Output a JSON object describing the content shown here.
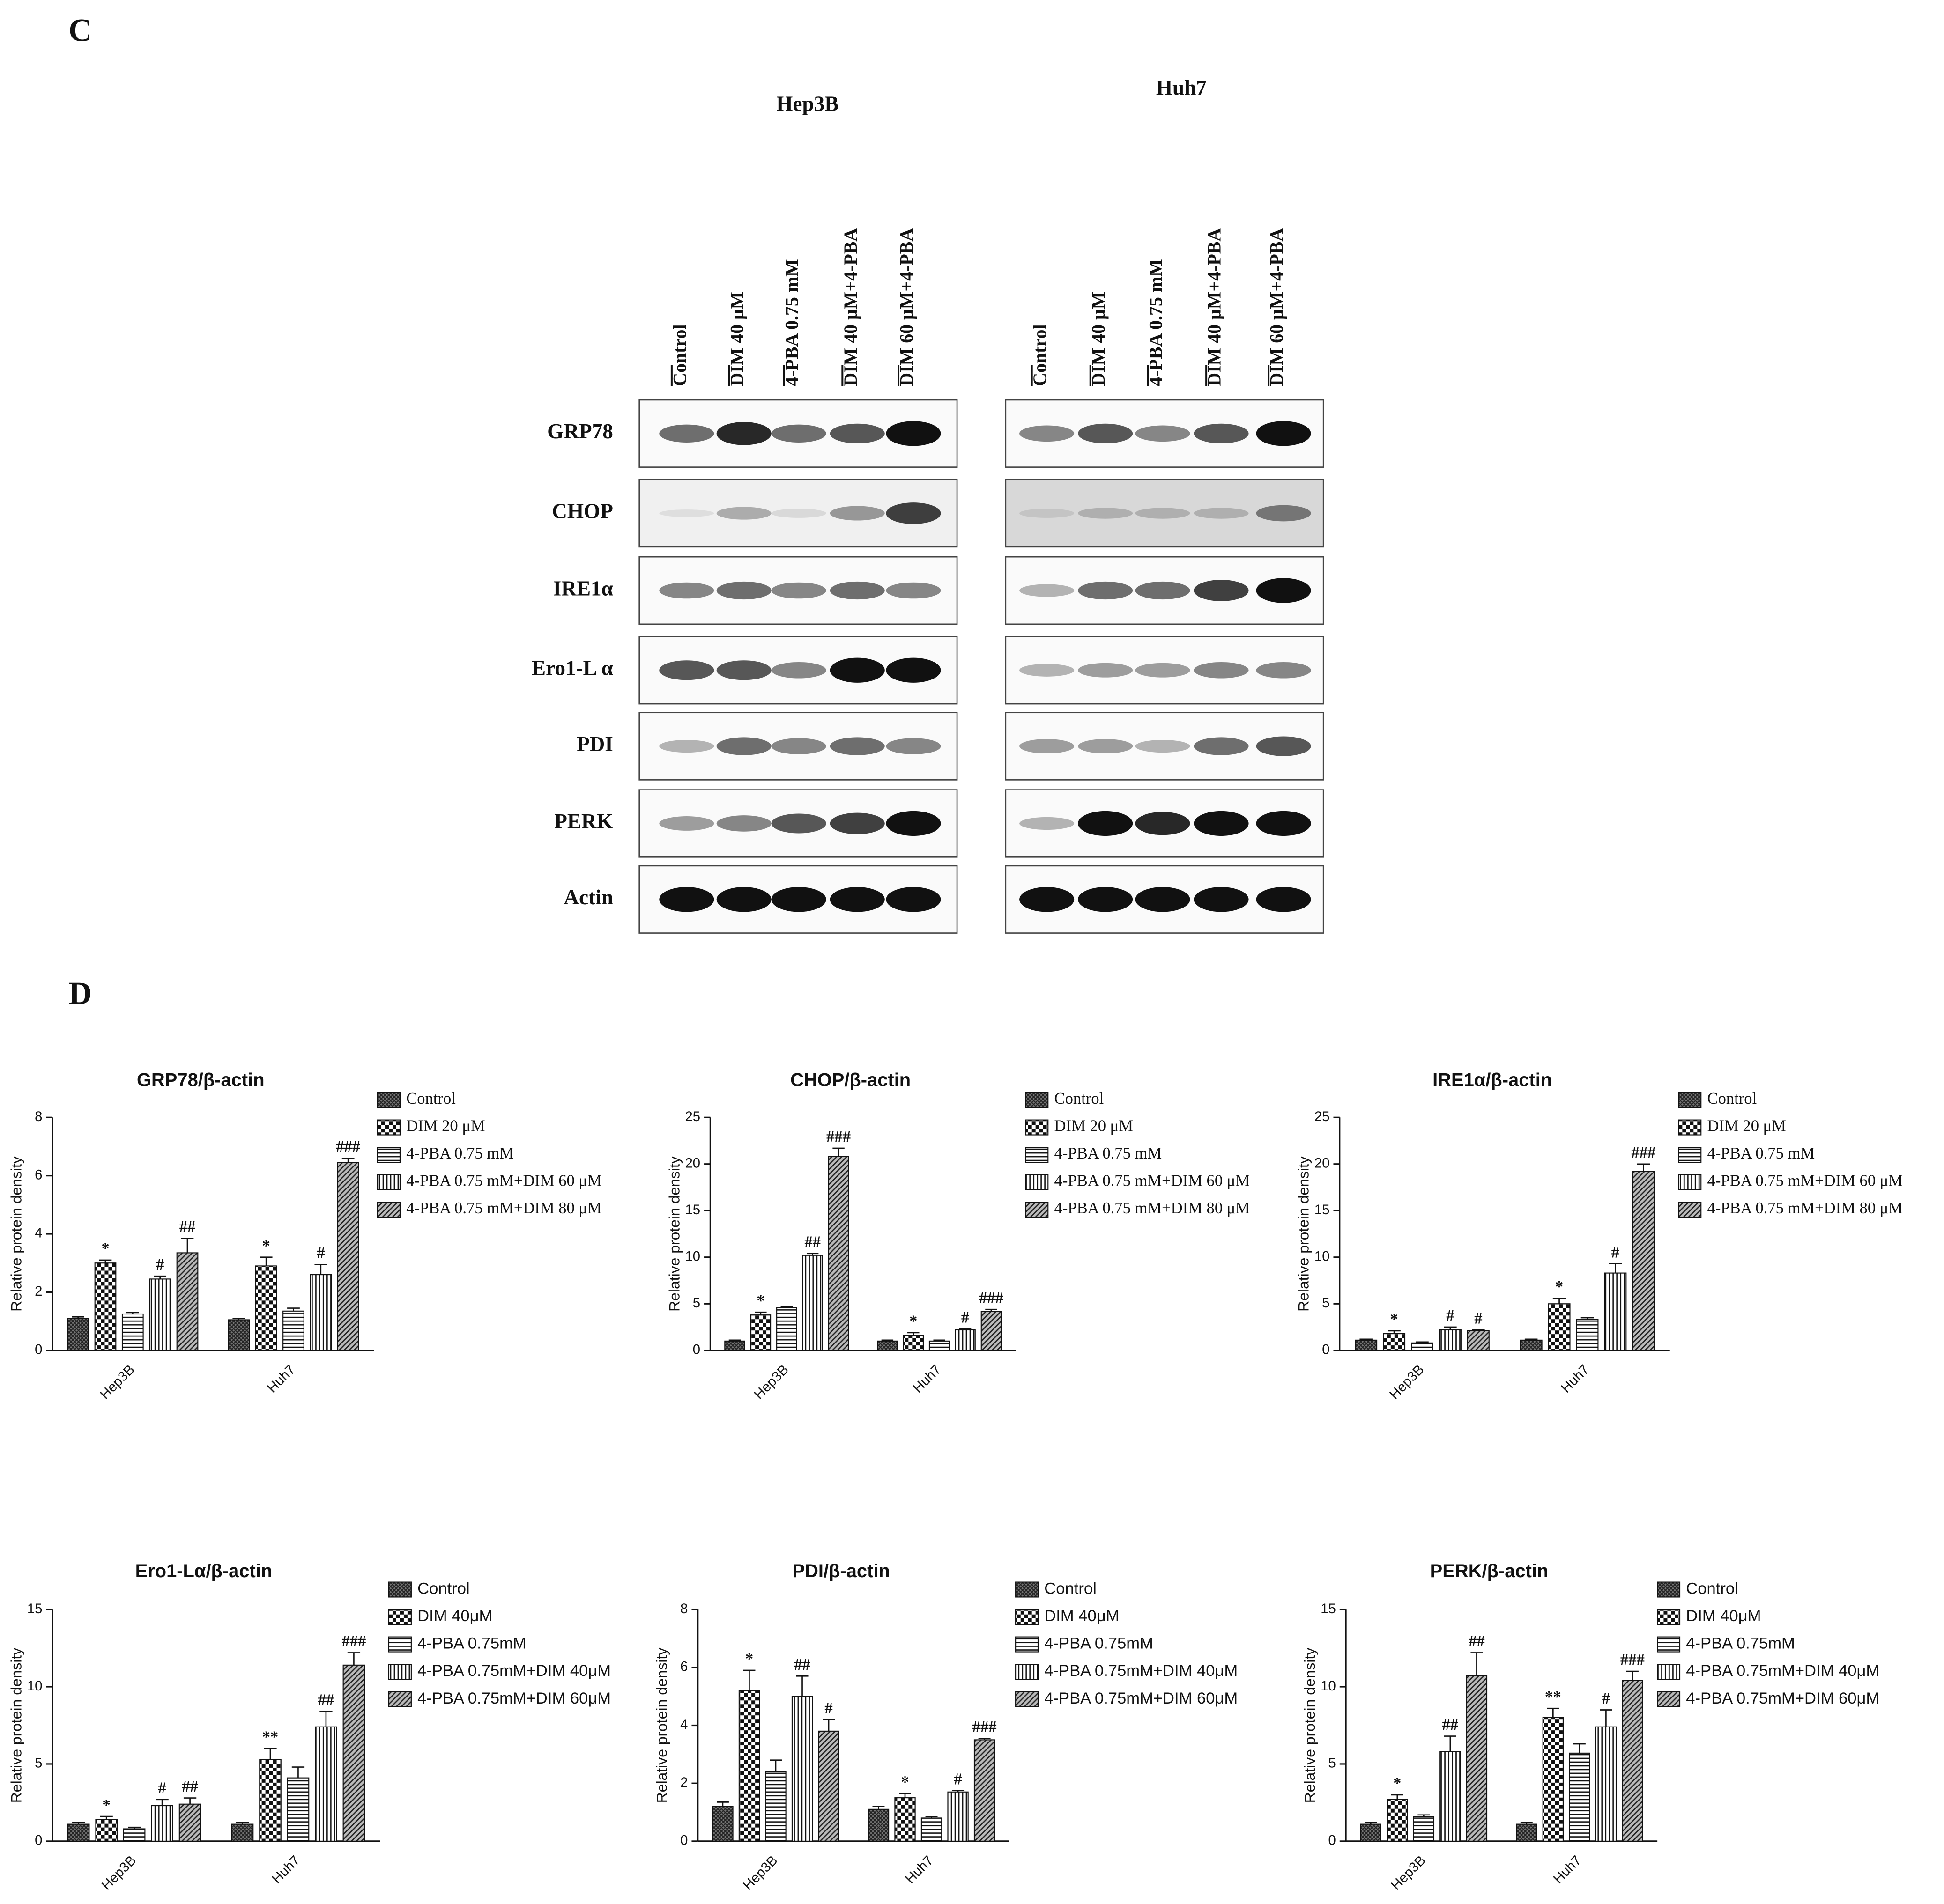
{
  "panel_c": {
    "label": "C",
    "cell_lines": [
      {
        "name": "Hep3B",
        "lanes": [
          "Control",
          "DIM 40 μM",
          "4-PBA 0.75 mM",
          "DIM 40 μM+4-PBA",
          "DIM 60 μM+4-PBA"
        ]
      },
      {
        "name": "Huh7",
        "lanes": [
          "Control",
          "DIM 40 μM",
          "4-PBA 0.75 mM",
          "DIM 40 μM+4-PBA",
          "DIM 60 μM+4-PBA"
        ]
      }
    ],
    "proteins": [
      "GRP78",
      "CHOP",
      "IRE1α",
      "Ero1-L α",
      "PDI",
      "PERK",
      "Actin"
    ]
  },
  "panel_d": {
    "label": "D"
  },
  "chart_data": [
    {
      "type": "bar",
      "title": "GRP78/β-actin",
      "y_label": "Relative protein density",
      "categories": [
        "Hep3B",
        "Huh7"
      ],
      "ylim": [
        0,
        8
      ],
      "yticks": [
        0,
        2,
        4,
        6,
        8
      ],
      "series": [
        {
          "name": "Control",
          "pattern": "dense",
          "values": [
            1.1,
            1.05
          ],
          "errors": [
            0.05,
            0.05
          ],
          "annotations": [
            null,
            null
          ]
        },
        {
          "name": "DIM 20 μM",
          "pattern": "checker",
          "values": [
            3.0,
            2.9
          ],
          "errors": [
            0.1,
            0.3
          ],
          "annotations": [
            "*",
            "*"
          ]
        },
        {
          "name": "4-PBA 0.75 mM",
          "pattern": "horizontal",
          "values": [
            1.25,
            1.35
          ],
          "errors": [
            0.05,
            0.1
          ],
          "annotations": [
            null,
            null
          ]
        },
        {
          "name": "4-PBA 0.75 mM+DIM 60 μM",
          "pattern": "vertical",
          "values": [
            2.45,
            2.6
          ],
          "errors": [
            0.1,
            0.35
          ],
          "annotations": [
            "#",
            "#"
          ]
        },
        {
          "name": "4-PBA 0.75 mM+DIM 80 μM",
          "pattern": "diagonal",
          "values": [
            3.35,
            6.45
          ],
          "errors": [
            0.5,
            0.15
          ],
          "annotations": [
            "##",
            "###"
          ]
        }
      ]
    },
    {
      "type": "bar",
      "title": "CHOP/β-actin",
      "y_label": "Relative protein density",
      "categories": [
        "Hep3B",
        "Huh7"
      ],
      "ylim": [
        0,
        25
      ],
      "yticks": [
        0,
        5,
        10,
        15,
        20,
        25
      ],
      "series": [
        {
          "name": "Control",
          "pattern": "dense",
          "values": [
            1.0,
            1.0
          ],
          "errors": [
            0.1,
            0.1
          ],
          "annotations": [
            null,
            null
          ]
        },
        {
          "name": "DIM 20 μM",
          "pattern": "checker",
          "values": [
            3.8,
            1.6
          ],
          "errors": [
            0.3,
            0.3
          ],
          "annotations": [
            "*",
            "*"
          ]
        },
        {
          "name": "4-PBA 0.75 mM",
          "pattern": "horizontal",
          "values": [
            4.6,
            1.0
          ],
          "errors": [
            0.1,
            0.1
          ],
          "annotations": [
            null,
            null
          ]
        },
        {
          "name": "4-PBA 0.75 mM+DIM 60 μM",
          "pattern": "vertical",
          "values": [
            10.2,
            2.2
          ],
          "errors": [
            0.2,
            0.1
          ],
          "annotations": [
            "##",
            "#"
          ]
        },
        {
          "name": "4-PBA 0.75 mM+DIM 80 μM",
          "pattern": "diagonal",
          "values": [
            20.8,
            4.2
          ],
          "errors": [
            0.9,
            0.2
          ],
          "annotations": [
            "###",
            "###"
          ]
        }
      ]
    },
    {
      "type": "bar",
      "title": "IRE1α/β-actin",
      "y_label": "Relative protein density",
      "categories": [
        "Hep3B",
        "Huh7"
      ],
      "ylim": [
        0,
        25
      ],
      "yticks": [
        0,
        5,
        10,
        15,
        20,
        25
      ],
      "series": [
        {
          "name": "Control",
          "pattern": "dense",
          "values": [
            1.1,
            1.1
          ],
          "errors": [
            0.1,
            0.1
          ],
          "annotations": [
            null,
            null
          ]
        },
        {
          "name": "DIM 20 μM",
          "pattern": "checker",
          "values": [
            1.8,
            5.0
          ],
          "errors": [
            0.3,
            0.6
          ],
          "annotations": [
            "*",
            "*"
          ]
        },
        {
          "name": "4-PBA 0.75 mM",
          "pattern": "horizontal",
          "values": [
            0.8,
            3.3
          ],
          "errors": [
            0.1,
            0.2
          ],
          "annotations": [
            null,
            null
          ]
        },
        {
          "name": "4-PBA 0.75 mM+DIM 60 μM",
          "pattern": "vertical",
          "values": [
            2.2,
            8.3
          ],
          "errors": [
            0.3,
            1.0
          ],
          "annotations": [
            "#",
            "#"
          ]
        },
        {
          "name": "4-PBA 0.75 mM+DIM 80 μM",
          "pattern": "diagonal",
          "values": [
            2.1,
            19.2
          ],
          "errors": [
            0.1,
            0.8
          ],
          "annotations": [
            "#",
            "###"
          ]
        }
      ]
    },
    {
      "type": "bar",
      "title": "Ero1-Lα/β-actin",
      "y_label": "Relative protein density",
      "categories": [
        "Hep3B",
        "Huh7"
      ],
      "ylim": [
        0,
        15
      ],
      "yticks": [
        0,
        5,
        10,
        15
      ],
      "series": [
        {
          "name": "Control",
          "pattern": "dense",
          "values": [
            1.1,
            1.1
          ],
          "errors": [
            0.1,
            0.1
          ],
          "annotations": [
            null,
            null
          ]
        },
        {
          "name": "DIM 40μM",
          "pattern": "checker",
          "values": [
            1.4,
            5.3
          ],
          "errors": [
            0.2,
            0.7
          ],
          "annotations": [
            "*",
            "**"
          ]
        },
        {
          "name": "4-PBA 0.75mM",
          "pattern": "horizontal",
          "values": [
            0.8,
            4.1
          ],
          "errors": [
            0.1,
            0.7
          ],
          "annotations": [
            null,
            null
          ]
        },
        {
          "name": "4-PBA 0.75mM+DIM 40μM",
          "pattern": "vertical",
          "values": [
            2.3,
            7.4
          ],
          "errors": [
            0.4,
            1.0
          ],
          "annotations": [
            "#",
            "##"
          ]
        },
        {
          "name": "4-PBA 0.75mM+DIM 60μM",
          "pattern": "diagonal",
          "values": [
            2.4,
            11.4
          ],
          "errors": [
            0.4,
            0.8
          ],
          "annotations": [
            "##",
            "###"
          ]
        }
      ]
    },
    {
      "type": "bar",
      "title": "PDI/β-actin",
      "y_label": "Relative protein density",
      "categories": [
        "Hep3B",
        "Huh7"
      ],
      "ylim": [
        0,
        8
      ],
      "yticks": [
        0,
        2,
        4,
        6,
        8
      ],
      "series": [
        {
          "name": "Control",
          "pattern": "dense",
          "values": [
            1.2,
            1.1
          ],
          "errors": [
            0.15,
            0.1
          ],
          "annotations": [
            null,
            null
          ]
        },
        {
          "name": "DIM 40μM",
          "pattern": "checker",
          "values": [
            5.2,
            1.5
          ],
          "errors": [
            0.7,
            0.15
          ],
          "annotations": [
            "*",
            "*"
          ]
        },
        {
          "name": "4-PBA 0.75mM",
          "pattern": "horizontal",
          "values": [
            2.4,
            0.8
          ],
          "errors": [
            0.4,
            0.05
          ],
          "annotations": [
            null,
            null
          ]
        },
        {
          "name": "4-PBA 0.75mM+DIM 40μM",
          "pattern": "vertical",
          "values": [
            5.0,
            1.7
          ],
          "errors": [
            0.7,
            0.05
          ],
          "annotations": [
            "##",
            "#"
          ]
        },
        {
          "name": "4-PBA 0.75mM+DIM 60μM",
          "pattern": "diagonal",
          "values": [
            3.8,
            3.5
          ],
          "errors": [
            0.4,
            0.05
          ],
          "annotations": [
            "#",
            "###"
          ]
        }
      ]
    },
    {
      "type": "bar",
      "title": "PERK/β-actin",
      "y_label": "Relative protein density",
      "categories": [
        "Hep3B",
        "Huh7"
      ],
      "ylim": [
        0,
        15
      ],
      "yticks": [
        0,
        5,
        10,
        15
      ],
      "series": [
        {
          "name": "Control",
          "pattern": "dense",
          "values": [
            1.1,
            1.1
          ],
          "errors": [
            0.1,
            0.1
          ],
          "annotations": [
            null,
            null
          ]
        },
        {
          "name": "DIM 40μM",
          "pattern": "checker",
          "values": [
            2.7,
            8.0
          ],
          "errors": [
            0.3,
            0.6
          ],
          "annotations": [
            "*",
            "**"
          ]
        },
        {
          "name": "4-PBA 0.75mM",
          "pattern": "horizontal",
          "values": [
            1.6,
            5.7
          ],
          "errors": [
            0.1,
            0.6
          ],
          "annotations": [
            null,
            null
          ]
        },
        {
          "name": "4-PBA 0.75mM+DIM 40μM",
          "pattern": "vertical",
          "values": [
            5.8,
            7.4
          ],
          "errors": [
            1.0,
            1.1
          ],
          "annotations": [
            "##",
            "#"
          ]
        },
        {
          "name": "4-PBA 0.75mM+DIM 60μM",
          "pattern": "diagonal",
          "values": [
            10.7,
            10.4
          ],
          "errors": [
            1.5,
            0.6
          ],
          "annotations": [
            "##",
            "###"
          ]
        }
      ]
    }
  ]
}
